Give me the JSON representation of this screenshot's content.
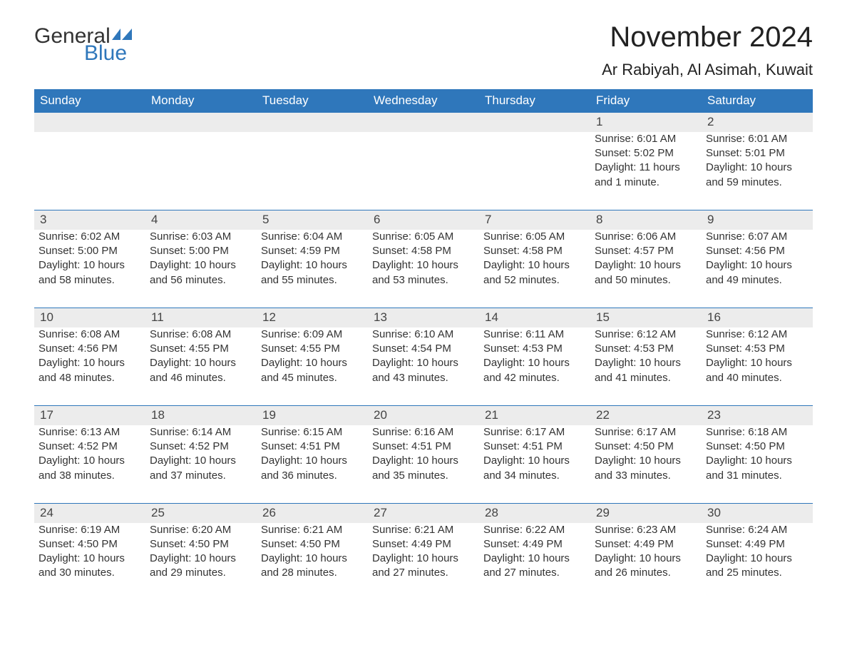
{
  "logo": {
    "text1": "General",
    "text2": "Blue",
    "flag_color": "#2f77bb"
  },
  "title": "November 2024",
  "location": "Ar Rabiyah, Al Asimah, Kuwait",
  "colors": {
    "header_bg": "#2f77bb",
    "header_text": "#ffffff",
    "daynum_bg": "#ececec",
    "daynum_border": "#2f77bb",
    "body_text": "#333333",
    "page_bg": "#ffffff"
  },
  "typography": {
    "title_fontsize": 40,
    "location_fontsize": 22,
    "header_fontsize": 17,
    "daynum_fontsize": 17,
    "cell_fontsize": 15,
    "font_family": "Arial"
  },
  "layout": {
    "columns": 7,
    "rows": 5
  },
  "weekdays": [
    "Sunday",
    "Monday",
    "Tuesday",
    "Wednesday",
    "Thursday",
    "Friday",
    "Saturday"
  ],
  "labels": {
    "sunrise": "Sunrise:",
    "sunset": "Sunset:",
    "daylight": "Daylight:"
  },
  "weeks": [
    [
      null,
      null,
      null,
      null,
      null,
      {
        "day": "1",
        "sunrise": "6:01 AM",
        "sunset": "5:02 PM",
        "daylight": "11 hours and 1 minute."
      },
      {
        "day": "2",
        "sunrise": "6:01 AM",
        "sunset": "5:01 PM",
        "daylight": "10 hours and 59 minutes."
      }
    ],
    [
      {
        "day": "3",
        "sunrise": "6:02 AM",
        "sunset": "5:00 PM",
        "daylight": "10 hours and 58 minutes."
      },
      {
        "day": "4",
        "sunrise": "6:03 AM",
        "sunset": "5:00 PM",
        "daylight": "10 hours and 56 minutes."
      },
      {
        "day": "5",
        "sunrise": "6:04 AM",
        "sunset": "4:59 PM",
        "daylight": "10 hours and 55 minutes."
      },
      {
        "day": "6",
        "sunrise": "6:05 AM",
        "sunset": "4:58 PM",
        "daylight": "10 hours and 53 minutes."
      },
      {
        "day": "7",
        "sunrise": "6:05 AM",
        "sunset": "4:58 PM",
        "daylight": "10 hours and 52 minutes."
      },
      {
        "day": "8",
        "sunrise": "6:06 AM",
        "sunset": "4:57 PM",
        "daylight": "10 hours and 50 minutes."
      },
      {
        "day": "9",
        "sunrise": "6:07 AM",
        "sunset": "4:56 PM",
        "daylight": "10 hours and 49 minutes."
      }
    ],
    [
      {
        "day": "10",
        "sunrise": "6:08 AM",
        "sunset": "4:56 PM",
        "daylight": "10 hours and 48 minutes."
      },
      {
        "day": "11",
        "sunrise": "6:08 AM",
        "sunset": "4:55 PM",
        "daylight": "10 hours and 46 minutes."
      },
      {
        "day": "12",
        "sunrise": "6:09 AM",
        "sunset": "4:55 PM",
        "daylight": "10 hours and 45 minutes."
      },
      {
        "day": "13",
        "sunrise": "6:10 AM",
        "sunset": "4:54 PM",
        "daylight": "10 hours and 43 minutes."
      },
      {
        "day": "14",
        "sunrise": "6:11 AM",
        "sunset": "4:53 PM",
        "daylight": "10 hours and 42 minutes."
      },
      {
        "day": "15",
        "sunrise": "6:12 AM",
        "sunset": "4:53 PM",
        "daylight": "10 hours and 41 minutes."
      },
      {
        "day": "16",
        "sunrise": "6:12 AM",
        "sunset": "4:53 PM",
        "daylight": "10 hours and 40 minutes."
      }
    ],
    [
      {
        "day": "17",
        "sunrise": "6:13 AM",
        "sunset": "4:52 PM",
        "daylight": "10 hours and 38 minutes."
      },
      {
        "day": "18",
        "sunrise": "6:14 AM",
        "sunset": "4:52 PM",
        "daylight": "10 hours and 37 minutes."
      },
      {
        "day": "19",
        "sunrise": "6:15 AM",
        "sunset": "4:51 PM",
        "daylight": "10 hours and 36 minutes."
      },
      {
        "day": "20",
        "sunrise": "6:16 AM",
        "sunset": "4:51 PM",
        "daylight": "10 hours and 35 minutes."
      },
      {
        "day": "21",
        "sunrise": "6:17 AM",
        "sunset": "4:51 PM",
        "daylight": "10 hours and 34 minutes."
      },
      {
        "day": "22",
        "sunrise": "6:17 AM",
        "sunset": "4:50 PM",
        "daylight": "10 hours and 33 minutes."
      },
      {
        "day": "23",
        "sunrise": "6:18 AM",
        "sunset": "4:50 PM",
        "daylight": "10 hours and 31 minutes."
      }
    ],
    [
      {
        "day": "24",
        "sunrise": "6:19 AM",
        "sunset": "4:50 PM",
        "daylight": "10 hours and 30 minutes."
      },
      {
        "day": "25",
        "sunrise": "6:20 AM",
        "sunset": "4:50 PM",
        "daylight": "10 hours and 29 minutes."
      },
      {
        "day": "26",
        "sunrise": "6:21 AM",
        "sunset": "4:50 PM",
        "daylight": "10 hours and 28 minutes."
      },
      {
        "day": "27",
        "sunrise": "6:21 AM",
        "sunset": "4:49 PM",
        "daylight": "10 hours and 27 minutes."
      },
      {
        "day": "28",
        "sunrise": "6:22 AM",
        "sunset": "4:49 PM",
        "daylight": "10 hours and 27 minutes."
      },
      {
        "day": "29",
        "sunrise": "6:23 AM",
        "sunset": "4:49 PM",
        "daylight": "10 hours and 26 minutes."
      },
      {
        "day": "30",
        "sunrise": "6:24 AM",
        "sunset": "4:49 PM",
        "daylight": "10 hours and 25 minutes."
      }
    ]
  ]
}
